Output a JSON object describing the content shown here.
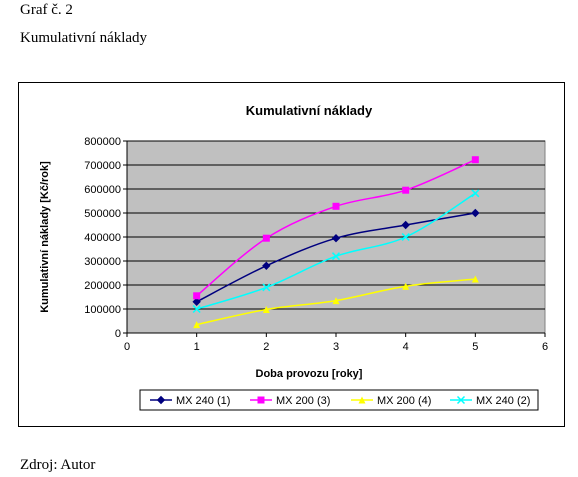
{
  "document": {
    "caption": "Graf č. 2",
    "heading": "Kumulativní náklady",
    "source": "Zdroj: Autor"
  },
  "chart_data": {
    "type": "line",
    "title": "Kumulativní náklady",
    "xlabel": "Doba provozu [roky]",
    "ylabel": "Kumulativní náklady  [Kč/rok]",
    "xlim": [
      0,
      6
    ],
    "ylim": [
      0,
      800000
    ],
    "xticks": [
      0,
      1,
      2,
      3,
      4,
      5,
      6
    ],
    "yticks": [
      0,
      100000,
      200000,
      300000,
      400000,
      500000,
      600000,
      700000,
      800000
    ],
    "x": [
      1,
      2,
      3,
      4,
      5
    ],
    "grid": true,
    "legend_position": "bottom",
    "plot_background": "#c0c0c0",
    "series": [
      {
        "name": "MX 240 (1)",
        "values": [
          130000,
          280000,
          395000,
          450000,
          500000
        ],
        "color": "#00007f",
        "marker": "diamond"
      },
      {
        "name": "MX 200 (3)",
        "values": [
          155000,
          395000,
          528000,
          595000,
          722000
        ],
        "color": "#ff00ff",
        "marker": "square"
      },
      {
        "name": "MX 200 (4)",
        "values": [
          35000,
          98000,
          135000,
          195000,
          225000
        ],
        "color": "#ffff00",
        "marker": "triangle"
      },
      {
        "name": "MX 240 (2)",
        "values": [
          100000,
          190000,
          320000,
          400000,
          582000
        ],
        "color": "#00ffff",
        "marker": "cross"
      }
    ]
  }
}
